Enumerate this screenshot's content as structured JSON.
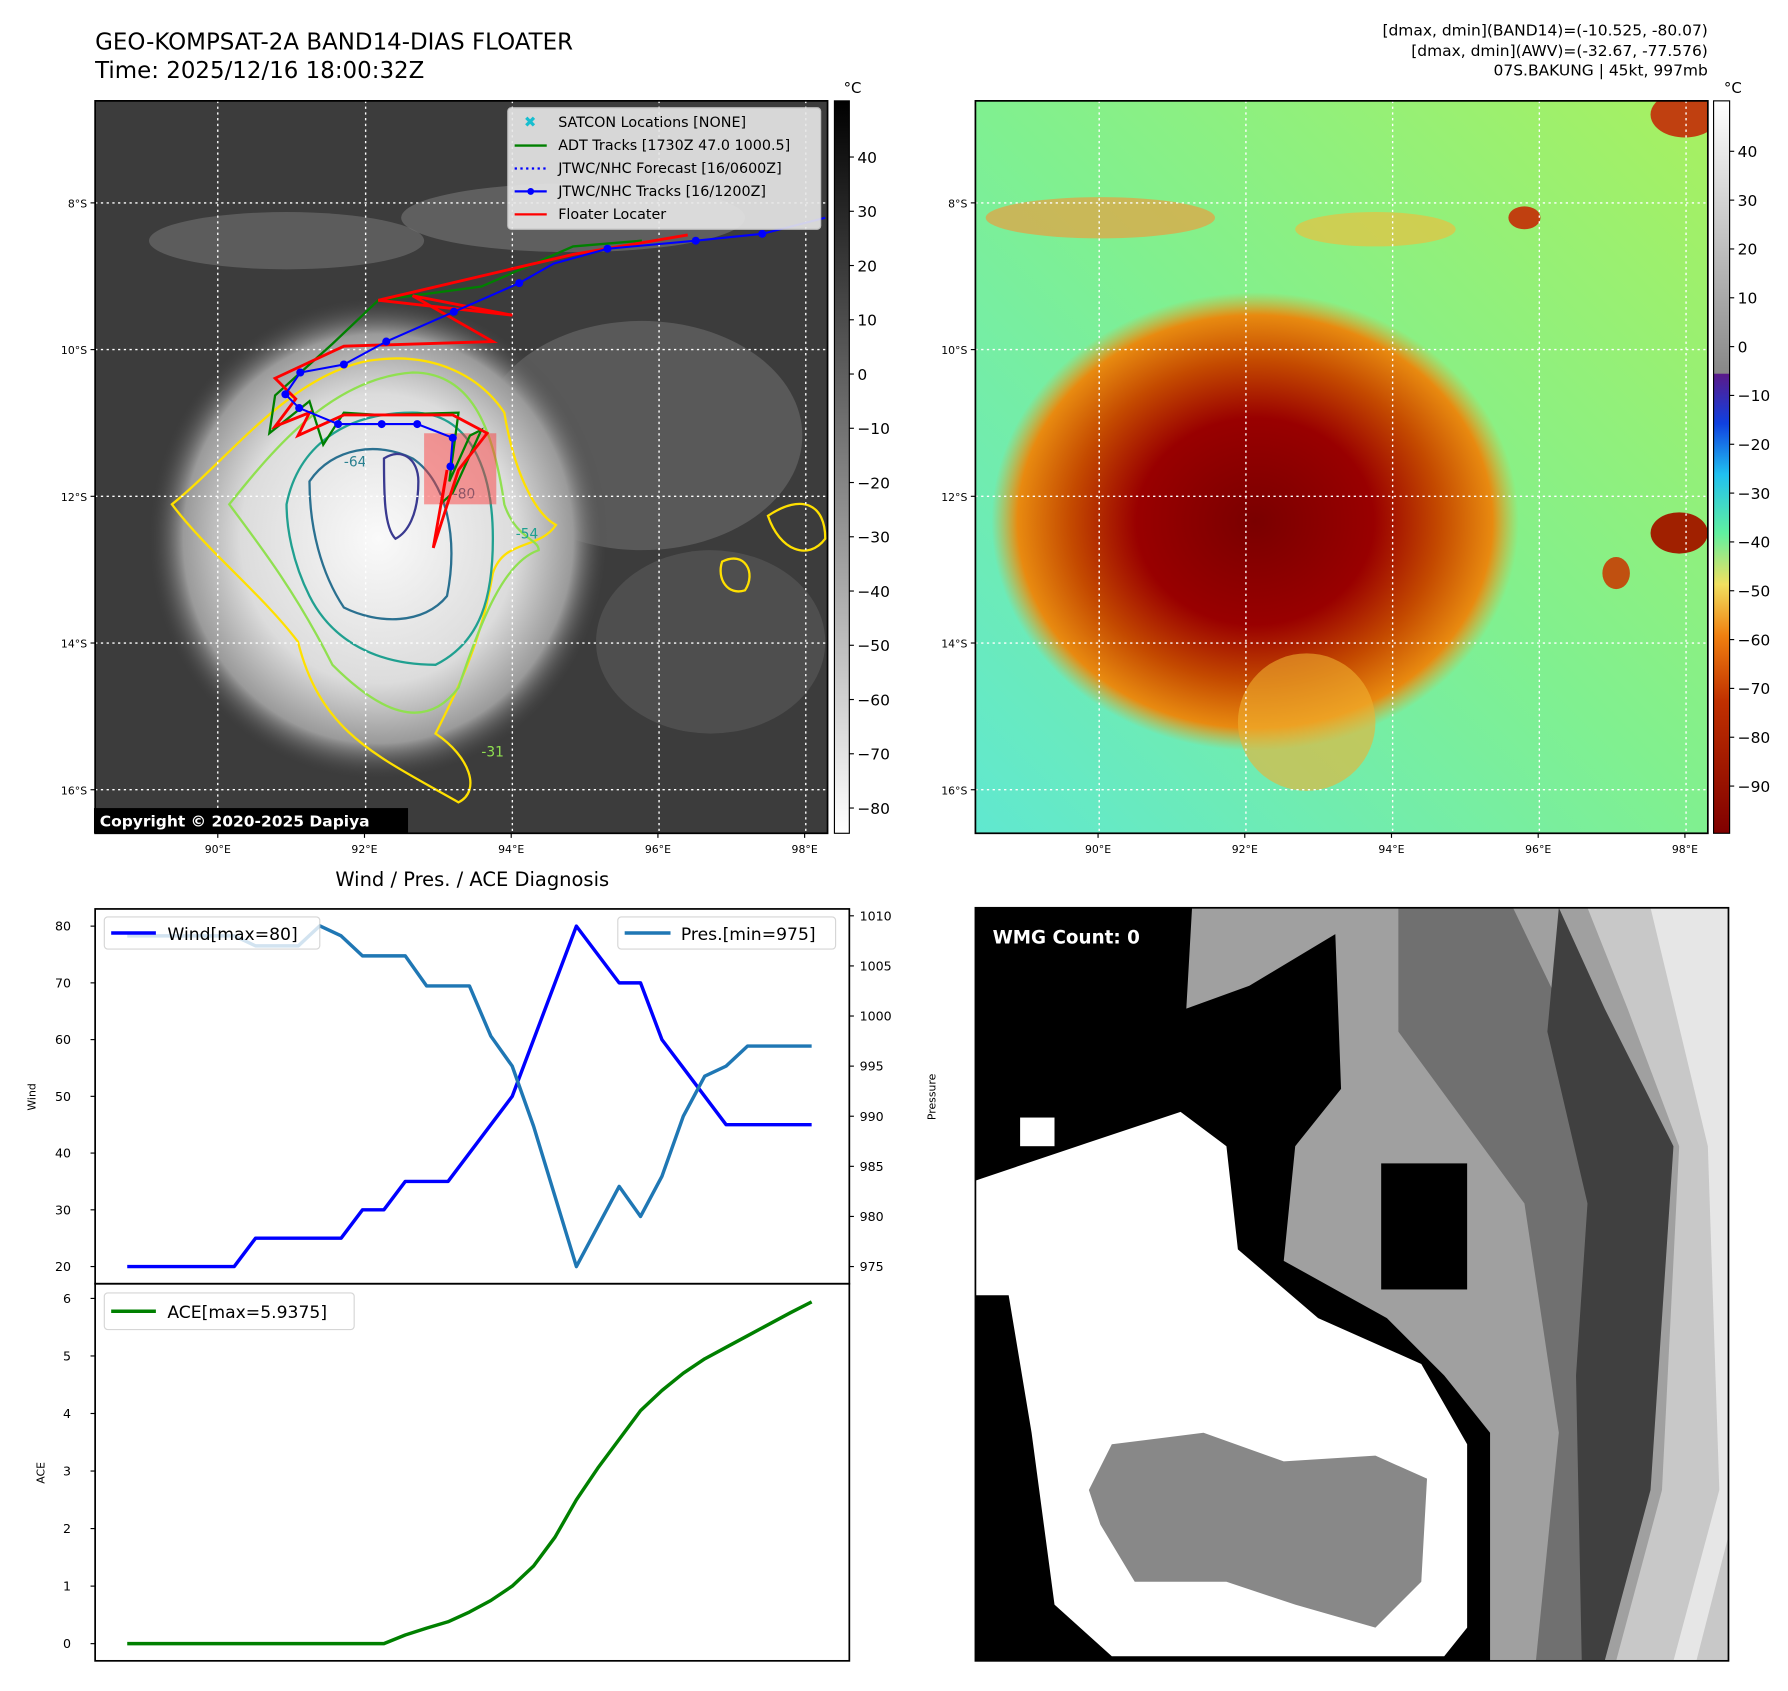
{
  "header": {
    "title": "GEO-KOMPSAT-2A BAND14-DIAS FLOATER",
    "time": "Time: 2025/12/16 18:00:32Z",
    "info_line1": "[dmax, dmin](BAND14)=(-10.525, -80.07)",
    "info_line2": "[dmax, dmin](AWV)=(-32.67, -77.576)",
    "info_line3": "07S.BAKUNG | 45kt, 997mb"
  },
  "maps": {
    "lon_ticks": [
      "90°E",
      "92°E",
      "94°E",
      "96°E",
      "98°E"
    ],
    "lat_ticks": [
      "8°S",
      "10°S",
      "12°S",
      "14°S",
      "16°S"
    ],
    "copyright": "Copyright © 2020-2025 Dapiya",
    "contour_labels": [
      "-64",
      "-31",
      "-54",
      "-80"
    ],
    "colorbar_unit": "°C",
    "left_colorbar_ticks": [
      "40",
      "30",
      "20",
      "10",
      "0",
      "−10",
      "−20",
      "−30",
      "−40",
      "−50",
      "−60",
      "−70",
      "−80"
    ],
    "right_colorbar_ticks": [
      "40",
      "30",
      "20",
      "10",
      "0",
      "−10",
      "−20",
      "−30",
      "−40",
      "−50",
      "−60",
      "−70",
      "−80",
      "−90"
    ],
    "legend": [
      {
        "label": "SATCON Locations [NONE]",
        "color": "#17becf"
      },
      {
        "label": "ADT Tracks [1730Z 47.0 1000.5]",
        "color": "#008000"
      },
      {
        "label": "JTWC/NHC Forecast [16/0600Z]",
        "color": "#0000ff"
      },
      {
        "label": "JTWC/NHC Tracks [16/1200Z]",
        "color": "#0000ff"
      },
      {
        "label": "Floater Locater",
        "color": "#ff0000"
      }
    ]
  },
  "wmg": {
    "label": "WMG Count: 0"
  },
  "chart_data": [
    {
      "type": "line",
      "title": "Wind / Pres. / ACE Diagnosis",
      "x": [
        0,
        1,
        2,
        3,
        4,
        5,
        6,
        7,
        8,
        9,
        10,
        11,
        12,
        13,
        14,
        15,
        16,
        17,
        18,
        19,
        20,
        21,
        22,
        23,
        24,
        25,
        26,
        27,
        28,
        29,
        30,
        31,
        32
      ],
      "ylabel": "Wind",
      "y2label": "Pressure",
      "ylim": [
        18.5,
        82.5
      ],
      "y2lim": [
        974,
        1010.5
      ],
      "yticks": [
        "20",
        "30",
        "40",
        "50",
        "60",
        "70",
        "80"
      ],
      "y2ticks": [
        "975",
        "980",
        "985",
        "990",
        "995",
        "1000",
        "1005",
        "1010"
      ],
      "series": [
        {
          "name": "Wind[max=80]",
          "axis": "left",
          "color": "#0000ff",
          "values": [
            20,
            20,
            20,
            20,
            20,
            20,
            25,
            25,
            25,
            25,
            25,
            30,
            30,
            35,
            35,
            35,
            40,
            45,
            50,
            60,
            70,
            80,
            75,
            70,
            70,
            60,
            55,
            50,
            45,
            45,
            45,
            45,
            45
          ]
        },
        {
          "name": "Pres.[min=975]",
          "axis": "right",
          "color": "#1f77b4",
          "values": [
            1008,
            1008,
            1008,
            1008,
            1008,
            1008,
            1007,
            1007,
            1007,
            1009,
            1008,
            1006,
            1006,
            1006,
            1003,
            1003,
            1003,
            998,
            995,
            989,
            982,
            975,
            979,
            983,
            980,
            984,
            990,
            994,
            995,
            997,
            997,
            997,
            997
          ]
        }
      ]
    },
    {
      "type": "line",
      "ylabel": "ACE",
      "ylim": [
        -0.3,
        6.2
      ],
      "yticks": [
        "0",
        "1",
        "2",
        "3",
        "4",
        "5",
        "6"
      ],
      "series": [
        {
          "name": "ACE[max=5.9375]",
          "color": "#008000",
          "values": [
            0,
            0,
            0,
            0,
            0,
            0,
            0,
            0,
            0,
            0,
            0,
            0,
            0,
            0.15,
            0.27,
            0.38,
            0.55,
            0.75,
            1.0,
            1.35,
            1.85,
            2.5,
            3.05,
            3.55,
            4.05,
            4.4,
            4.7,
            4.95,
            5.15,
            5.35,
            5.55,
            5.75,
            5.94
          ]
        }
      ]
    }
  ]
}
